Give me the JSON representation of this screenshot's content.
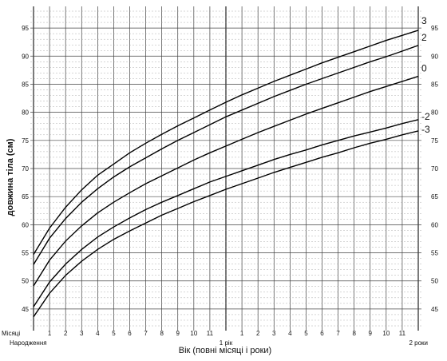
{
  "chart_data": {
    "type": "line",
    "title": "",
    "xlabel": "Вік (повні місяці і роки)",
    "ylabel": "довжина тіла (см)",
    "months_label": "Місяці",
    "birth_label": "Народження",
    "year_labels": [
      {
        "month": 12,
        "label": "1 рік"
      },
      {
        "month": 24,
        "label": "2 роки"
      }
    ],
    "month_tick_labels": [
      "1",
      "2",
      "3",
      "4",
      "5",
      "6",
      "7",
      "8",
      "9",
      "10",
      "11",
      "1",
      "2",
      "3",
      "4",
      "5",
      "6",
      "7",
      "8",
      "9",
      "10",
      "11"
    ],
    "xlim": [
      0,
      24
    ],
    "ylim": [
      42,
      98
    ],
    "yticks": [
      45,
      50,
      55,
      60,
      65,
      70,
      75,
      80,
      85,
      90,
      95
    ],
    "grid": true,
    "x": [
      0,
      1,
      2,
      3,
      4,
      5,
      6,
      7,
      8,
      9,
      10,
      11,
      12,
      13,
      14,
      15,
      16,
      17,
      18,
      19,
      20,
      21,
      22,
      23,
      24
    ],
    "series": [
      {
        "name": "3",
        "values": [
          54.7,
          59.4,
          63.1,
          66.2,
          68.8,
          70.8,
          72.8,
          74.5,
          76.1,
          77.6,
          79.0,
          80.4,
          81.8,
          83.1,
          84.3,
          85.5,
          86.6,
          87.7,
          88.8,
          89.8,
          90.8,
          91.8,
          92.8,
          93.7,
          94.6
        ]
      },
      {
        "name": "2",
        "values": [
          52.9,
          57.6,
          61.1,
          64.0,
          66.4,
          68.5,
          70.3,
          71.9,
          73.5,
          75.0,
          76.4,
          77.8,
          79.2,
          80.4,
          81.6,
          82.8,
          83.9,
          85.0,
          86.0,
          87.0,
          88.0,
          89.0,
          89.9,
          90.9,
          91.9
        ]
      },
      {
        "name": "0",
        "values": [
          49.1,
          53.7,
          57.1,
          59.8,
          62.1,
          64.0,
          65.7,
          67.3,
          68.7,
          70.1,
          71.5,
          72.8,
          74.0,
          75.2,
          76.4,
          77.5,
          78.6,
          79.7,
          80.7,
          81.7,
          82.7,
          83.7,
          84.6,
          85.5,
          86.4
        ]
      },
      {
        "name": "-2",
        "values": [
          45.4,
          49.8,
          53.0,
          55.6,
          57.8,
          59.6,
          61.2,
          62.7,
          64.0,
          65.2,
          66.4,
          67.6,
          68.6,
          69.6,
          70.6,
          71.6,
          72.5,
          73.3,
          74.2,
          75.0,
          75.8,
          76.5,
          77.2,
          78.0,
          78.7
        ]
      },
      {
        "name": "-3",
        "values": [
          43.6,
          47.8,
          51.0,
          53.5,
          55.6,
          57.4,
          58.9,
          60.3,
          61.7,
          62.9,
          64.1,
          65.2,
          66.3,
          67.3,
          68.3,
          69.3,
          70.2,
          71.1,
          72.0,
          72.8,
          73.7,
          74.5,
          75.2,
          76.0,
          76.7
        ]
      }
    ]
  }
}
